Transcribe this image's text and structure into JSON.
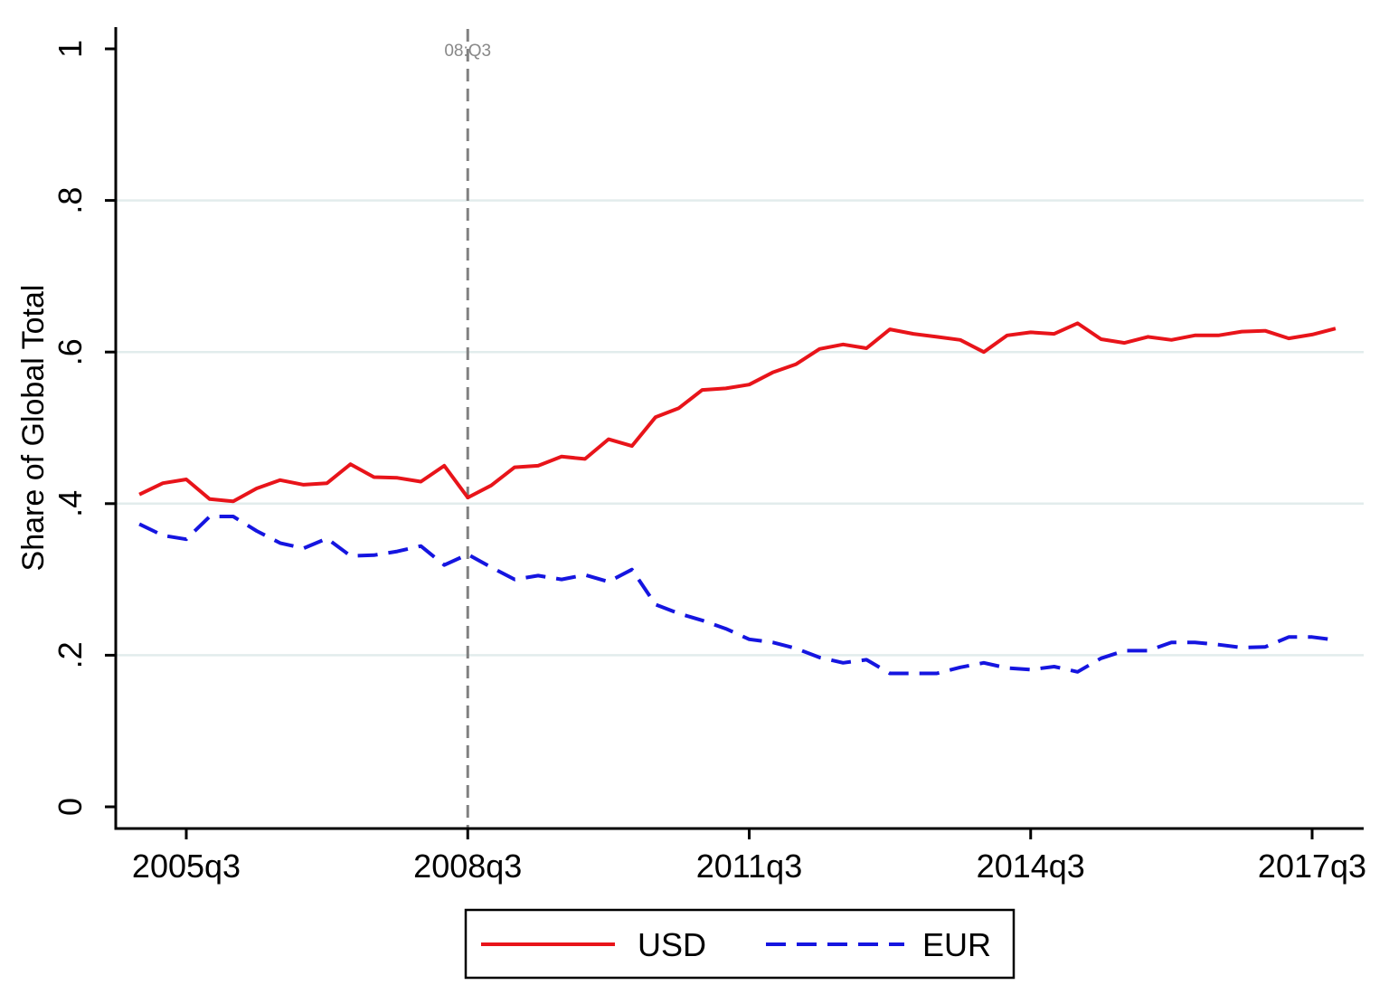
{
  "chart_data": {
    "type": "line",
    "title": "",
    "xlabel": "",
    "ylabel": "Share of Global Total",
    "ylim": [
      0,
      1
    ],
    "yticks": [
      {
        "value": 0,
        "label": "0"
      },
      {
        "value": 0.2,
        "label": ".2"
      },
      {
        "value": 0.4,
        "label": ".4"
      },
      {
        "value": 0.6,
        "label": ".6"
      },
      {
        "value": 0.8,
        "label": ".8"
      },
      {
        "value": 1,
        "label": "1"
      }
    ],
    "xlim": [
      -2.5,
      50
    ],
    "xticks": [
      {
        "value": 0,
        "label": "2005q3"
      },
      {
        "value": 12,
        "label": "2008q3"
      },
      {
        "value": 24,
        "label": "2011q3"
      },
      {
        "value": 36,
        "label": "2014q3"
      },
      {
        "value": 48,
        "label": "2017q3"
      }
    ],
    "gridlines": [
      0.2,
      0.4,
      0.6,
      0.8
    ],
    "x_index_note": "quarters since 2005q3",
    "x": [
      -2,
      -1,
      0,
      1,
      2,
      3,
      4,
      5,
      6,
      7,
      8,
      9,
      10,
      11,
      12,
      13,
      14,
      15,
      16,
      17,
      18,
      19,
      20,
      21,
      22,
      23,
      24,
      25,
      26,
      27,
      28,
      29,
      30,
      31,
      32,
      33,
      34,
      35,
      36,
      37,
      38,
      39,
      40,
      41,
      42,
      43,
      44,
      45,
      46,
      47,
      48,
      49
    ],
    "series": [
      {
        "name": "USD",
        "color": "#e8141a",
        "dash": "solid",
        "values": [
          0.412,
          0.427,
          0.432,
          0.406,
          0.403,
          0.42,
          0.431,
          0.425,
          0.427,
          0.452,
          0.435,
          0.434,
          0.429,
          0.45,
          0.408,
          0.424,
          0.448,
          0.45,
          0.462,
          0.459,
          0.485,
          0.476,
          0.514,
          0.526,
          0.55,
          0.552,
          0.557,
          0.573,
          0.584,
          0.604,
          0.61,
          0.605,
          0.63,
          0.624,
          0.62,
          0.616,
          0.6,
          0.622,
          0.626,
          0.624,
          0.638,
          0.617,
          0.612,
          0.62,
          0.616,
          0.622,
          0.622,
          0.627,
          0.628,
          0.618,
          0.623,
          0.631
        ]
      },
      {
        "name": "EUR",
        "color": "#1515e0",
        "dash": "dashed",
        "values": [
          0.373,
          0.358,
          0.353,
          0.383,
          0.383,
          0.364,
          0.348,
          0.341,
          0.354,
          0.331,
          0.332,
          0.337,
          0.344,
          0.319,
          0.333,
          0.316,
          0.3,
          0.305,
          0.3,
          0.306,
          0.297,
          0.313,
          0.267,
          0.255,
          0.246,
          0.235,
          0.221,
          0.217,
          0.209,
          0.197,
          0.19,
          0.194,
          0.176,
          0.176,
          0.176,
          0.184,
          0.19,
          0.183,
          0.181,
          0.185,
          0.178,
          0.196,
          0.206,
          0.206,
          0.217,
          0.217,
          0.214,
          0.21,
          0.211,
          0.224,
          0.224,
          0.22
        ]
      }
    ],
    "annotations": [
      {
        "x": 12,
        "label": "08:Q3",
        "style": "dashed-vertical-line",
        "color": "#808080"
      }
    ],
    "legend": {
      "position": "bottom-center",
      "entries": [
        {
          "label": "USD",
          "color": "#e8141a",
          "dash": "solid"
        },
        {
          "label": "EUR",
          "color": "#1515e0",
          "dash": "dashed"
        }
      ]
    }
  }
}
